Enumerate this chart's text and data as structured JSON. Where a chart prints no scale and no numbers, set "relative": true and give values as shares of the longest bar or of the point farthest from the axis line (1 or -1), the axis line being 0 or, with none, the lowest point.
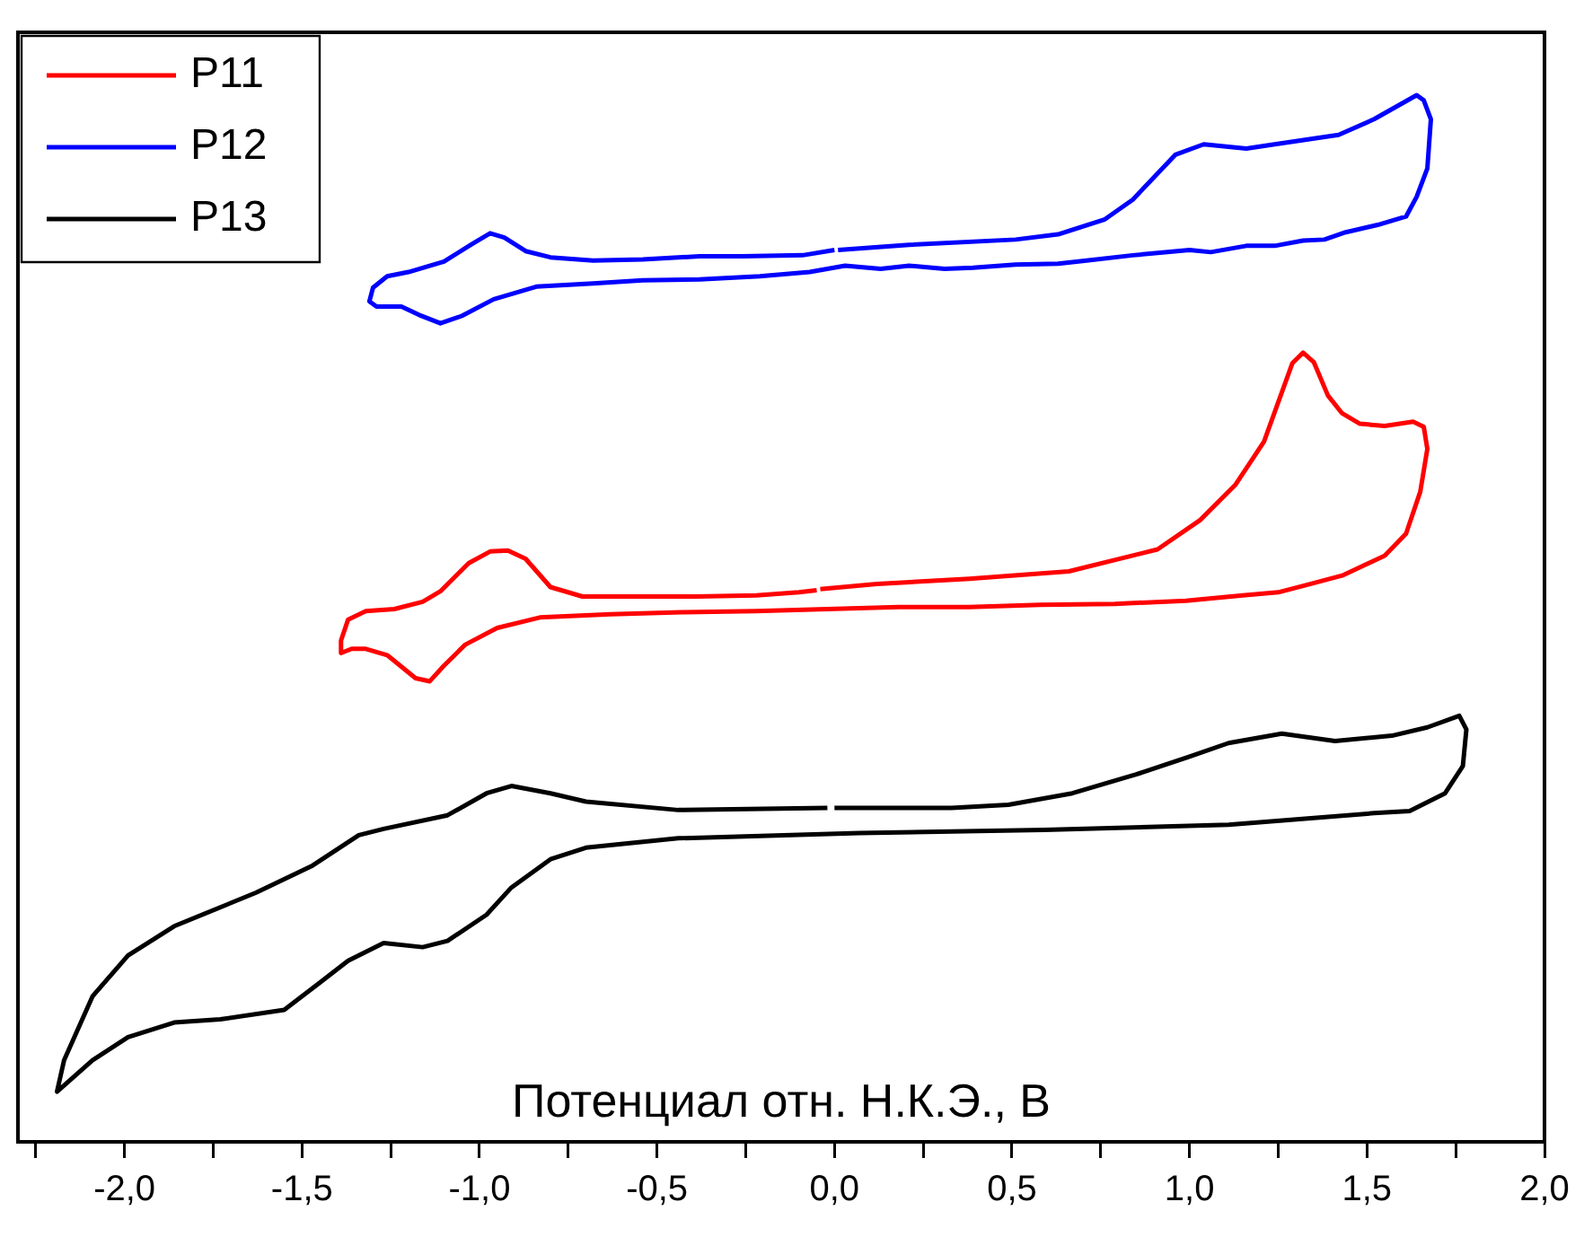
{
  "chart_data": {
    "type": "line",
    "relative": true,
    "xlabel": "Потенциал отн. Н.К.Э., В",
    "legend": "top left",
    "xlim": [
      -2.3,
      2.0
    ],
    "xticks": [
      {
        "value": -2.25,
        "label": null
      },
      {
        "value": -2,
        "label": "-2,0"
      },
      {
        "value": -1.75,
        "label": null
      },
      {
        "value": -1.5,
        "label": "-1,5"
      },
      {
        "value": -1.25,
        "label": null
      },
      {
        "value": -1,
        "label": "-1,0"
      },
      {
        "value": -0.75,
        "label": null
      },
      {
        "value": -0.5,
        "label": "-0,5"
      },
      {
        "value": -0.25,
        "label": null
      },
      {
        "value": 0,
        "label": "0,0"
      },
      {
        "value": 0.25,
        "label": null
      },
      {
        "value": 0.5,
        "label": "0,5"
      },
      {
        "value": 0.75,
        "label": null
      },
      {
        "value": 1,
        "label": "1,0"
      },
      {
        "value": 1.25,
        "label": null
      },
      {
        "value": 1.5,
        "label": "1,5"
      },
      {
        "value": 1.75,
        "label": null
      },
      {
        "value": 2,
        "label": "2,0"
      }
    ],
    "series": [
      {
        "name": "P11",
        "color": "#ff0000",
        "x": [
          -0.04,
          0.12,
          0.38,
          0.66,
          0.91,
          1.03,
          1.13,
          1.21,
          1.29,
          1.32,
          1.35,
          1.39,
          1.43,
          1.48,
          1.55,
          1.63,
          1.66,
          1.67,
          1.65,
          1.61,
          1.55,
          1.43,
          1.33,
          1.25,
          1.15,
          0.99,
          0.79,
          0.58,
          0.38,
          0.18,
          -0.02,
          -0.22,
          -0.43,
          -0.63,
          -0.83,
          -0.95,
          -1.04,
          -1.1,
          -1.14,
          -1.18,
          -1.26,
          -1.32,
          -1.36,
          -1.39,
          -1.39,
          -1.37,
          -1.32,
          -1.24,
          -1.16,
          -1.11,
          -1.03,
          -0.97,
          -0.92,
          -0.87,
          -0.8,
          -0.71,
          -0.53,
          -0.39,
          -0.22,
          -0.1,
          -0.05
        ],
        "values": [
          0.528,
          0.533,
          0.538,
          0.545,
          0.566,
          0.594,
          0.628,
          0.669,
          0.744,
          0.754,
          0.745,
          0.713,
          0.696,
          0.686,
          0.684,
          0.688,
          0.683,
          0.662,
          0.621,
          0.581,
          0.56,
          0.541,
          0.532,
          0.525,
          0.522,
          0.517,
          0.514,
          0.513,
          0.511,
          0.511,
          0.509,
          0.507,
          0.506,
          0.504,
          0.501,
          0.491,
          0.475,
          0.455,
          0.44,
          0.443,
          0.465,
          0.471,
          0.471,
          0.467,
          0.479,
          0.499,
          0.507,
          0.509,
          0.516,
          0.526,
          0.553,
          0.564,
          0.565,
          0.557,
          0.53,
          0.521,
          0.521,
          0.521,
          0.522,
          0.525,
          0.527
        ]
      },
      {
        "name": "P12",
        "color": "#0000ff",
        "x": [
          0.01,
          0.21,
          0.51,
          0.63,
          0.76,
          0.84,
          0.96,
          1.04,
          1.16,
          1.24,
          1.42,
          1.52,
          1.64,
          1.66,
          1.68,
          1.67,
          1.64,
          1.61,
          1.53,
          1.44,
          1.38,
          1.32,
          1.24,
          1.16,
          1.06,
          1.0,
          0.84,
          0.71,
          0.63,
          0.51,
          0.39,
          0.31,
          0.21,
          0.13,
          0.03,
          -0.07,
          -0.21,
          -0.38,
          -0.54,
          -0.68,
          -0.84,
          -0.96,
          -1.05,
          -1.11,
          -1.17,
          -1.22,
          -1.29,
          -1.31,
          -1.3,
          -1.26,
          -1.2,
          -1.1,
          -1.02,
          -0.97,
          -0.93,
          -0.87,
          -0.8,
          -0.68,
          -0.54,
          -0.38,
          -0.26,
          -0.09,
          0.0
        ],
        "values": [
          0.852,
          0.857,
          0.862,
          0.867,
          0.881,
          0.9,
          0.943,
          0.953,
          0.949,
          0.953,
          0.962,
          0.977,
          1,
          0.995,
          0.977,
          0.93,
          0.903,
          0.884,
          0.876,
          0.869,
          0.862,
          0.861,
          0.856,
          0.856,
          0.85,
          0.852,
          0.847,
          0.842,
          0.839,
          0.838,
          0.835,
          0.834,
          0.837,
          0.834,
          0.837,
          0.831,
          0.827,
          0.824,
          0.823,
          0.82,
          0.817,
          0.805,
          0.789,
          0.782,
          0.79,
          0.798,
          0.798,
          0.803,
          0.816,
          0.827,
          0.831,
          0.841,
          0.858,
          0.868,
          0.864,
          0.851,
          0.845,
          0.842,
          0.843,
          0.846,
          0.846,
          0.847,
          0.852
        ]
      },
      {
        "name": "P13",
        "color": "#000000",
        "x": [
          0.0,
          0.33,
          0.49,
          0.67,
          0.85,
          1.0,
          1.11,
          1.26,
          1.41,
          1.57,
          1.67,
          1.76,
          1.78,
          1.77,
          1.72,
          1.62,
          1.52,
          1.11,
          0.59,
          0.07,
          -0.44,
          -0.7,
          -0.8,
          -0.91,
          -0.98,
          -1.09,
          -1.16,
          -1.27,
          -1.37,
          -1.45,
          -1.55,
          -1.73,
          -1.86,
          -1.99,
          -2.09,
          -2.19,
          -2.17,
          -2.09,
          -1.99,
          -1.86,
          -1.63,
          -1.47,
          -1.34,
          -1.27,
          -1.09,
          -0.98,
          -0.91,
          -0.8,
          -0.7,
          -0.44,
          -0.02
        ],
        "values": [
          0.319,
          0.319,
          0.322,
          0.333,
          0.351,
          0.368,
          0.381,
          0.39,
          0.383,
          0.388,
          0.396,
          0.407,
          0.394,
          0.359,
          0.333,
          0.316,
          0.314,
          0.303,
          0.298,
          0.295,
          0.29,
          0.281,
          0.27,
          0.243,
          0.217,
          0.192,
          0.186,
          0.19,
          0.173,
          0.152,
          0.126,
          0.117,
          0.114,
          0.1,
          0.078,
          0.048,
          0.078,
          0.139,
          0.178,
          0.206,
          0.238,
          0.264,
          0.293,
          0.299,
          0.312,
          0.333,
          0.34,
          0.333,
          0.325,
          0.317,
          0.319
        ]
      }
    ]
  }
}
